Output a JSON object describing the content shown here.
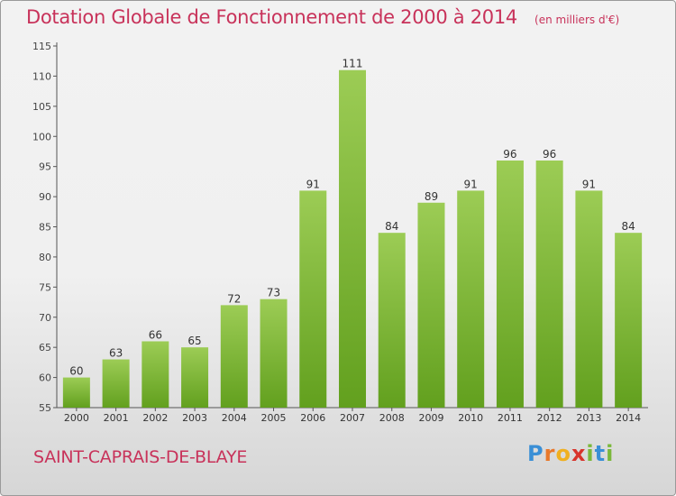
{
  "header": {
    "title": "Dotation Globale de Fonctionnement de 2000 à 2014",
    "unit": "(en milliers d'€)"
  },
  "footer": {
    "commune": "SAINT-CAPRAIS-DE-BLAYE",
    "logo_letters": [
      "P",
      "r",
      "o",
      "x",
      "i",
      "t",
      "i"
    ],
    "logo_colors": [
      "#3a8fd6",
      "#e8782a",
      "#f0b020",
      "#d8342c",
      "#7ab83a",
      "#3a8fd6",
      "#7ab83a"
    ]
  },
  "colors": {
    "bar_top": "#9ccc55",
    "bar_bottom": "#62a01e",
    "title": "#c8325a"
  },
  "chart_data": {
    "type": "bar",
    "title": "Dotation Globale de Fonctionnement de 2000 à 2014",
    "xlabel": "",
    "ylabel": "",
    "categories": [
      "2000",
      "2001",
      "2002",
      "2003",
      "2004",
      "2005",
      "2006",
      "2007",
      "2008",
      "2009",
      "2010",
      "2011",
      "2012",
      "2013",
      "2014"
    ],
    "values": [
      60,
      63,
      66,
      65,
      72,
      73,
      91,
      111,
      84,
      89,
      91,
      96,
      96,
      91,
      84
    ],
    "ylim": [
      55,
      115
    ],
    "yticks": [
      55,
      60,
      65,
      70,
      75,
      80,
      85,
      90,
      95,
      100,
      105,
      110,
      115
    ],
    "grid": false,
    "legend": "none"
  }
}
